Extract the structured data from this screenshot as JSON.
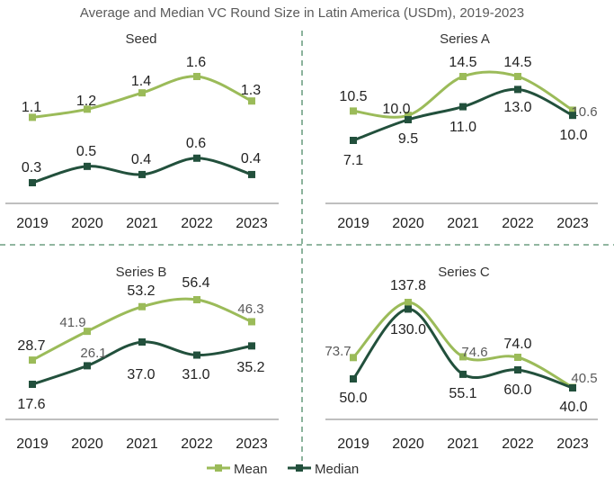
{
  "colors": {
    "mean": "#9bbb59",
    "median": "#22503c",
    "divider": "#4f8a68",
    "axis": "#7f7f7f"
  },
  "chart_data": {
    "type": "line",
    "title": "Average and Median VC Round Size in Latin America (USDm), 2019-2023",
    "categories": [
      "2019",
      "2020",
      "2021",
      "2022",
      "2023"
    ],
    "legend": {
      "position": "bottom-center",
      "entries": [
        "Mean",
        "Median"
      ]
    },
    "panels": [
      {
        "title": "Seed",
        "series": [
          {
            "name": "Mean",
            "values": [
              1.1,
              1.2,
              1.4,
              1.6,
              1.3
            ],
            "labels": [
              "1.1",
              "1.2",
              "1.4",
              "1.6",
              "1.3"
            ]
          },
          {
            "name": "Median",
            "values": [
              0.3,
              0.5,
              0.4,
              0.6,
              0.4
            ],
            "labels": [
              "0.3",
              "0.5",
              "0.4",
              "0.6",
              "0.4"
            ]
          }
        ]
      },
      {
        "title": "Series A",
        "series": [
          {
            "name": "Mean",
            "values": [
              10.5,
              10.0,
              14.5,
              14.5,
              10.6
            ],
            "labels": [
              "10.5",
              "10.0",
              "14.5",
              "14.5",
              "10.6"
            ]
          },
          {
            "name": "Median",
            "values": [
              7.1,
              9.5,
              11.0,
              13.0,
              10.0
            ],
            "labels": [
              "7.1",
              "9.5",
              "11.0",
              "13.0",
              "10.0"
            ]
          }
        ]
      },
      {
        "title": "Series B",
        "series": [
          {
            "name": "Mean",
            "values": [
              28.7,
              41.9,
              53.2,
              56.4,
              46.3
            ],
            "labels": [
              "28.7",
              "41.9",
              "53.2",
              "56.4",
              "46.3"
            ]
          },
          {
            "name": "Median",
            "values": [
              17.6,
              26.1,
              37.0,
              31.0,
              35.2
            ],
            "labels": [
              "17.6",
              "26.1",
              "37.0",
              "31.0",
              "35.2"
            ]
          }
        ]
      },
      {
        "title": "Series C",
        "series": [
          {
            "name": "Mean",
            "values": [
              73.7,
              137.8,
              74.6,
              74.0,
              40.5
            ],
            "labels": [
              "73.7",
              "137.8",
              "74.6",
              "74.0",
              "40.5"
            ]
          },
          {
            "name": "Median",
            "values": [
              50.0,
              130.0,
              55.1,
              60.0,
              40.0
            ],
            "labels": [
              "50.0",
              "130.0",
              "55.1",
              "60.0",
              "40.0"
            ]
          }
        ]
      }
    ]
  }
}
